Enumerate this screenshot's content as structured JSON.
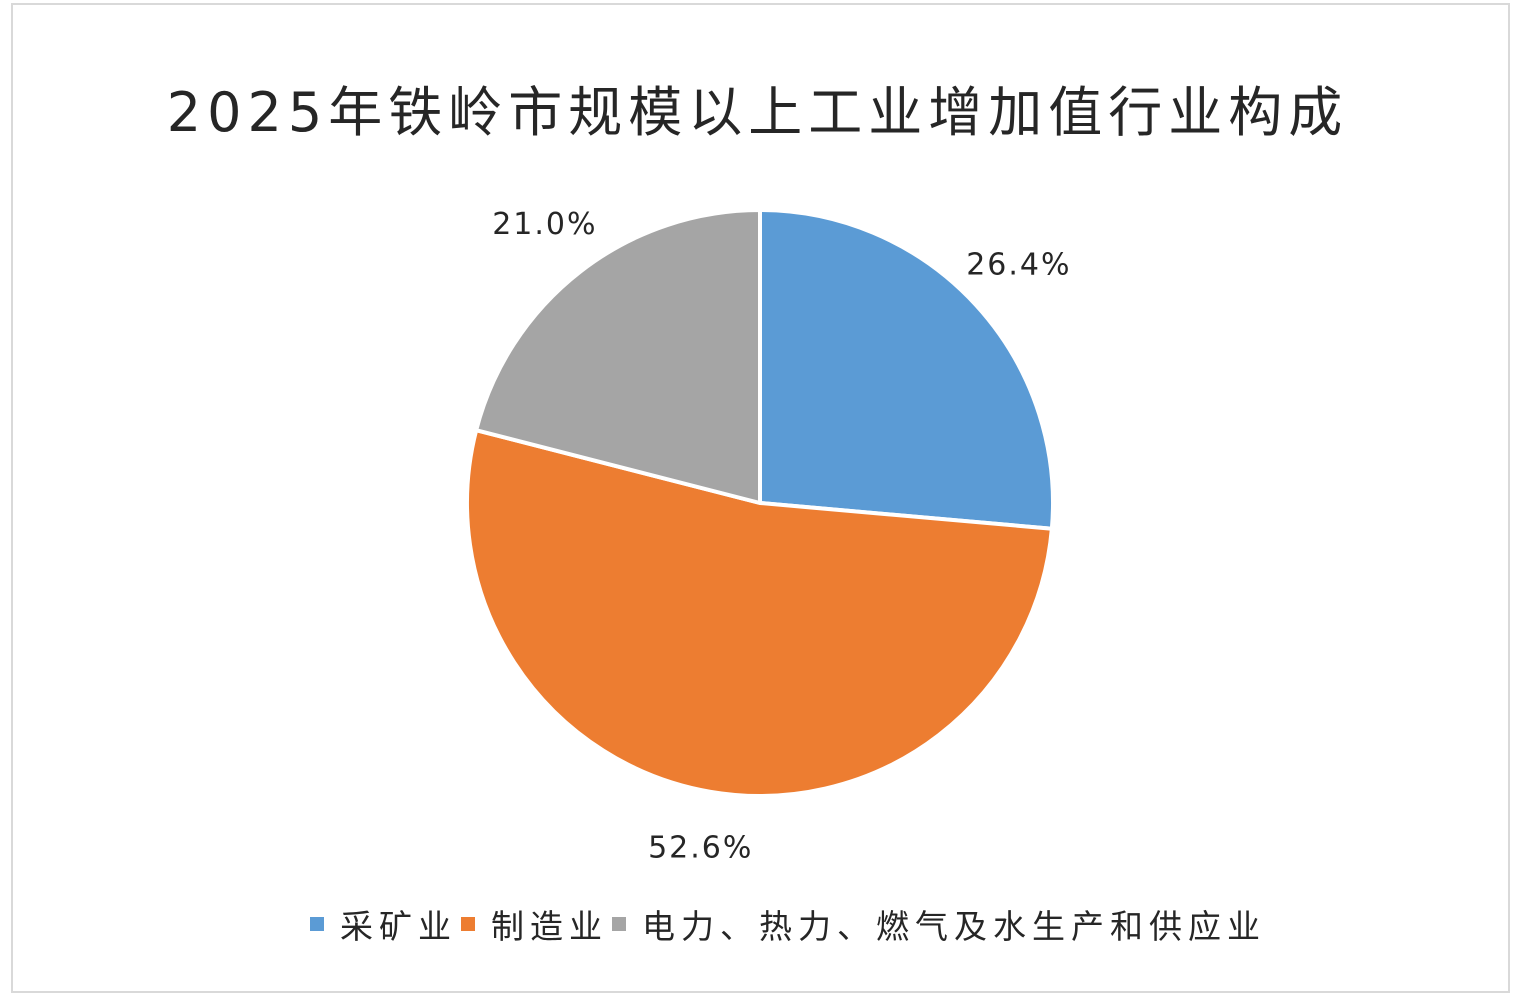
{
  "chart_data": {
    "type": "pie",
    "title": "2025年铁岭市规模以上工业增加值行业构成",
    "categories": [
      "采矿业",
      "制造业",
      "电力、热力、燃气及水生产和供应业"
    ],
    "values": [
      26.4,
      52.6,
      21.0
    ],
    "labels": [
      "26.4%",
      "52.6%",
      "21.0%"
    ],
    "colors": [
      "#5b9bd5",
      "#ed7d31",
      "#a5a5a5"
    ],
    "start_angle_deg": 0,
    "direction": "clockwise",
    "legend_position": "bottom"
  }
}
